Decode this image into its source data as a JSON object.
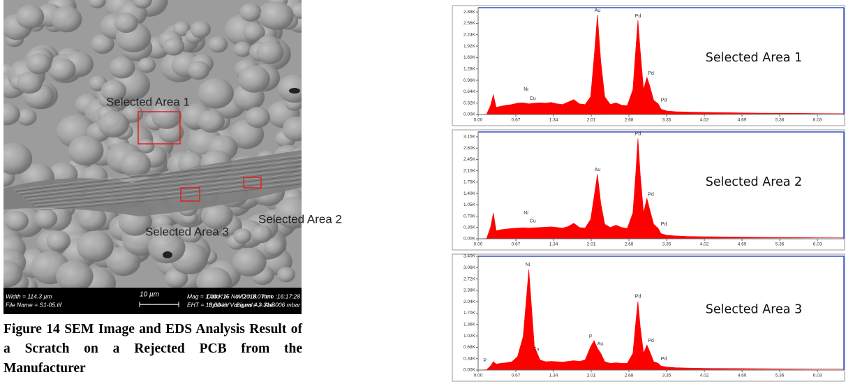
{
  "sem_image": {
    "labels": [
      "Selected Area 1",
      "Selected Area 2",
      "Selected Area 3"
    ],
    "info_bar": {
      "width": "Width = 114.3 µm",
      "file": "File Name = S1-05.tif",
      "scale": "10 µm",
      "mag": "Mag =  1.00 K X",
      "eht": "EHT = 10.00 kV",
      "wd": "WD = 8.0 mm",
      "signal": "Signal A = AsB",
      "date": "Date :15 Nov 2018",
      "time": "Time :16:17:28",
      "vacuum": "System Vacuum = 2.31e-006 mbar"
    }
  },
  "caption": "Figure 14 SEM Image and EDS Analysis Result of a Scratch on a Rejected PCB from the Manufacturer",
  "chart_data": [
    {
      "type": "area",
      "title": "Selected Area 1",
      "color": "#ff0000",
      "x": [
        0,
        0.15,
        0.22,
        0.27,
        0.32,
        0.4,
        0.5,
        0.6,
        0.7,
        0.8,
        0.9,
        1.0,
        1.1,
        1.2,
        1.3,
        1.4,
        1.5,
        1.6,
        1.7,
        1.8,
        1.9,
        2.0,
        2.06,
        2.12,
        2.18,
        2.25,
        2.35,
        2.45,
        2.55,
        2.65,
        2.75,
        2.8,
        2.84,
        2.88,
        2.94,
        3.0,
        3.05,
        3.12,
        3.2,
        3.25,
        3.35,
        3.5,
        3.7,
        4.0,
        4.5,
        5.0,
        5.5,
        6.0,
        6.5
      ],
      "values": [
        0,
        10,
        250,
        560,
        200,
        230,
        260,
        280,
        320,
        330,
        300,
        320,
        330,
        320,
        340,
        300,
        280,
        350,
        420,
        300,
        280,
        500,
        1600,
        2800,
        1500,
        500,
        280,
        330,
        260,
        250,
        700,
        1800,
        2650,
        1800,
        700,
        1050,
        800,
        400,
        300,
        150,
        100,
        80,
        70,
        60,
        50,
        40,
        35,
        30,
        30
      ],
      "xlim": [
        0,
        6.5
      ],
      "ylim": [
        0,
        3000
      ],
      "xticks": [
        {
          "value": 0,
          "label": "0.00"
        },
        0.67,
        1.34,
        2.01,
        2.68,
        3.35,
        4.02,
        4.69,
        5.36,
        6.03
      ],
      "yticks": [
        {
          "value": 0,
          "label": "0.00K"
        },
        {
          "value": 320,
          "label": "0.32K"
        },
        {
          "value": 640,
          "label": "0.64K"
        },
        {
          "value": 960,
          "label": "0.96K"
        },
        {
          "value": 1280,
          "label": "1.28K"
        },
        {
          "value": 1600,
          "label": "1.60K"
        },
        {
          "value": 1920,
          "label": "1.92K"
        },
        {
          "value": 2240,
          "label": "2.24K"
        },
        {
          "value": 2560,
          "label": "2.56K"
        },
        {
          "value": 2880,
          "label": "2.88K"
        }
      ],
      "annotations": [
        {
          "text": "Ni",
          "x": 0.85,
          "y": 700
        },
        {
          "text": "Cu",
          "x": 0.97,
          "y": 450
        },
        {
          "text": "Au",
          "x": 2.12,
          "y": 2920
        },
        {
          "text": "Pd",
          "x": 2.84,
          "y": 2760
        },
        {
          "text": "Pd",
          "x": 3.07,
          "y": 1150
        },
        {
          "text": "Pd",
          "x": 3.3,
          "y": 400
        }
      ]
    },
    {
      "type": "area",
      "title": "Selected Area 2",
      "color": "#ff0000",
      "x": [
        0,
        0.15,
        0.22,
        0.27,
        0.32,
        0.4,
        0.5,
        0.6,
        0.7,
        0.8,
        0.9,
        1.0,
        1.1,
        1.2,
        1.3,
        1.4,
        1.5,
        1.6,
        1.7,
        1.8,
        1.9,
        2.0,
        2.06,
        2.12,
        2.18,
        2.25,
        2.35,
        2.45,
        2.55,
        2.65,
        2.75,
        2.8,
        2.84,
        2.88,
        2.94,
        3.0,
        3.05,
        3.12,
        3.2,
        3.25,
        3.35,
        3.5,
        3.7,
        4.0,
        4.5,
        5.0,
        5.5,
        6.0,
        6.5
      ],
      "values": [
        0,
        10,
        350,
        800,
        250,
        280,
        300,
        320,
        330,
        340,
        330,
        340,
        350,
        360,
        370,
        350,
        330,
        380,
        480,
        350,
        330,
        600,
        1300,
        2000,
        1100,
        450,
        350,
        420,
        350,
        320,
        800,
        2000,
        3100,
        2000,
        800,
        1250,
        900,
        450,
        320,
        160,
        110,
        90,
        75,
        65,
        55,
        45,
        38,
        32,
        30
      ],
      "xlim": [
        0,
        6.5
      ],
      "ylim": [
        0,
        3300
      ],
      "xticks": [
        {
          "value": 0,
          "label": "0.00"
        },
        0.67,
        1.34,
        2.01,
        2.68,
        3.35,
        4.02,
        4.69,
        5.36,
        6.03
      ],
      "yticks": [
        {
          "value": 0,
          "label": "0.00K"
        },
        {
          "value": 350,
          "label": "0.35K"
        },
        {
          "value": 700,
          "label": "0.70K"
        },
        {
          "value": 1050,
          "label": "1.05K"
        },
        {
          "value": 1400,
          "label": "1.40K"
        },
        {
          "value": 1750,
          "label": "1.75K"
        },
        {
          "value": 2100,
          "label": "2.10K"
        },
        {
          "value": 2450,
          "label": "2.45K"
        },
        {
          "value": 2800,
          "label": "2.80K"
        },
        {
          "value": 3150,
          "label": "3.15K"
        }
      ],
      "annotations": [
        {
          "text": "Ni",
          "x": 0.85,
          "y": 800
        },
        {
          "text": "Cu",
          "x": 0.97,
          "y": 550
        },
        {
          "text": "Au",
          "x": 2.12,
          "y": 2130
        },
        {
          "text": "Pd",
          "x": 2.84,
          "y": 3240
        },
        {
          "text": "Pd",
          "x": 3.07,
          "y": 1370
        },
        {
          "text": "Pd",
          "x": 3.3,
          "y": 450
        }
      ]
    },
    {
      "type": "area",
      "title": "Selected Area 3",
      "color": "#ff0000",
      "x": [
        0,
        0.15,
        0.22,
        0.27,
        0.32,
        0.4,
        0.5,
        0.6,
        0.7,
        0.8,
        0.9,
        1.0,
        1.1,
        1.2,
        1.3,
        1.4,
        1.5,
        1.6,
        1.7,
        1.8,
        1.9,
        2.0,
        2.06,
        2.12,
        2.18,
        2.25,
        2.35,
        2.45,
        2.55,
        2.65,
        2.75,
        2.8,
        2.84,
        2.88,
        2.94,
        3.0,
        3.05,
        3.12,
        3.2,
        3.25,
        3.35,
        3.5,
        3.7,
        4.0,
        4.5,
        5.0,
        5.5,
        6.0,
        6.5
      ],
      "values": [
        0,
        10,
        120,
        250,
        180,
        200,
        220,
        250,
        400,
        1000,
        3000,
        700,
        300,
        250,
        260,
        250,
        240,
        260,
        280,
        260,
        300,
        700,
        880,
        650,
        500,
        250,
        200,
        220,
        200,
        200,
        500,
        1400,
        2050,
        1300,
        500,
        750,
        550,
        250,
        200,
        120,
        90,
        70,
        60,
        50,
        45,
        40,
        35,
        30,
        30
      ],
      "xlim": [
        0,
        6.5
      ],
      "ylim": [
        0,
        3400
      ],
      "xticks": [
        {
          "value": 0,
          "label": "0.00"
        },
        0.67,
        1.34,
        2.01,
        2.68,
        3.35,
        4.02,
        4.69,
        5.36,
        6.03
      ],
      "yticks": [
        {
          "value": 0,
          "label": "0.00K"
        },
        {
          "value": 340,
          "label": "0.34K"
        },
        {
          "value": 680,
          "label": "0.68K"
        },
        {
          "value": 1020,
          "label": "1.02K"
        },
        {
          "value": 1360,
          "label": "1.36K"
        },
        {
          "value": 1700,
          "label": "1.70K"
        },
        {
          "value": 2040,
          "label": "2.04K"
        },
        {
          "value": 2380,
          "label": "2.38K"
        },
        {
          "value": 2720,
          "label": "2.72K"
        },
        {
          "value": 3060,
          "label": "3.06K"
        },
        {
          "value": 3400,
          "label": "3.40K"
        }
      ],
      "annotations": [
        {
          "text": "P",
          "x": 0.12,
          "y": 280
        },
        {
          "text": "Ni",
          "x": 0.88,
          "y": 3150
        },
        {
          "text": "Cu",
          "x": 1.03,
          "y": 620
        },
        {
          "text": "P",
          "x": 2.0,
          "y": 1000
        },
        {
          "text": "Au",
          "x": 2.17,
          "y": 780
        },
        {
          "text": "Pd",
          "x": 2.84,
          "y": 2200
        },
        {
          "text": "Pd",
          "x": 3.07,
          "y": 870
        },
        {
          "text": "Pd",
          "x": 3.3,
          "y": 330
        }
      ]
    }
  ]
}
